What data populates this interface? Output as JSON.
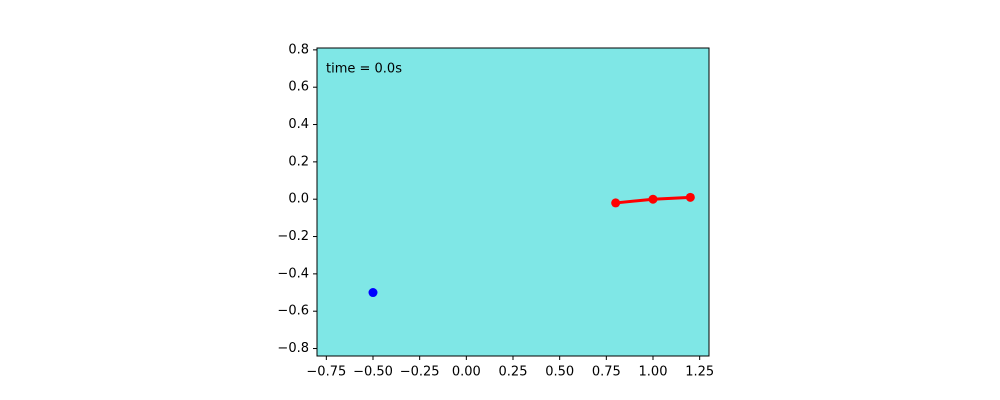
{
  "chart_data": {
    "type": "line",
    "annotation": "time = 0.0s",
    "facecolor": "#7fe7e6",
    "xlim": [
      -0.8,
      1.3
    ],
    "ylim": [
      -0.84,
      0.81
    ],
    "xticks": [
      {
        "value": -0.75,
        "label": "−0.75"
      },
      {
        "value": -0.5,
        "label": "−0.50"
      },
      {
        "value": -0.25,
        "label": "−0.25"
      },
      {
        "value": 0,
        "label": "0.00"
      },
      0.25,
      {
        "value": 0.5,
        "label": "0.50"
      },
      0.75,
      {
        "value": 1,
        "label": "1.00"
      },
      1.25
    ],
    "yticks": [
      {
        "value": -0.8,
        "label": "−0.8"
      },
      {
        "value": -0.6,
        "label": "−0.6"
      },
      {
        "value": -0.4,
        "label": "−0.4"
      },
      {
        "value": -0.2,
        "label": "−0.2"
      },
      {
        "value": 0,
        "label": "0.0"
      },
      0.2,
      0.4,
      0.6,
      0.8
    ],
    "series": [
      {
        "color": "#ff0000",
        "linewidth": 3,
        "x": [
          0.8,
          1.0,
          1.2
        ],
        "values": [
          -0.02,
          0.0,
          0.01
        ]
      },
      {
        "color": "#0000ff",
        "linewidth": 0,
        "x": [
          -0.5
        ],
        "values": [
          -0.5
        ]
      }
    ]
  }
}
